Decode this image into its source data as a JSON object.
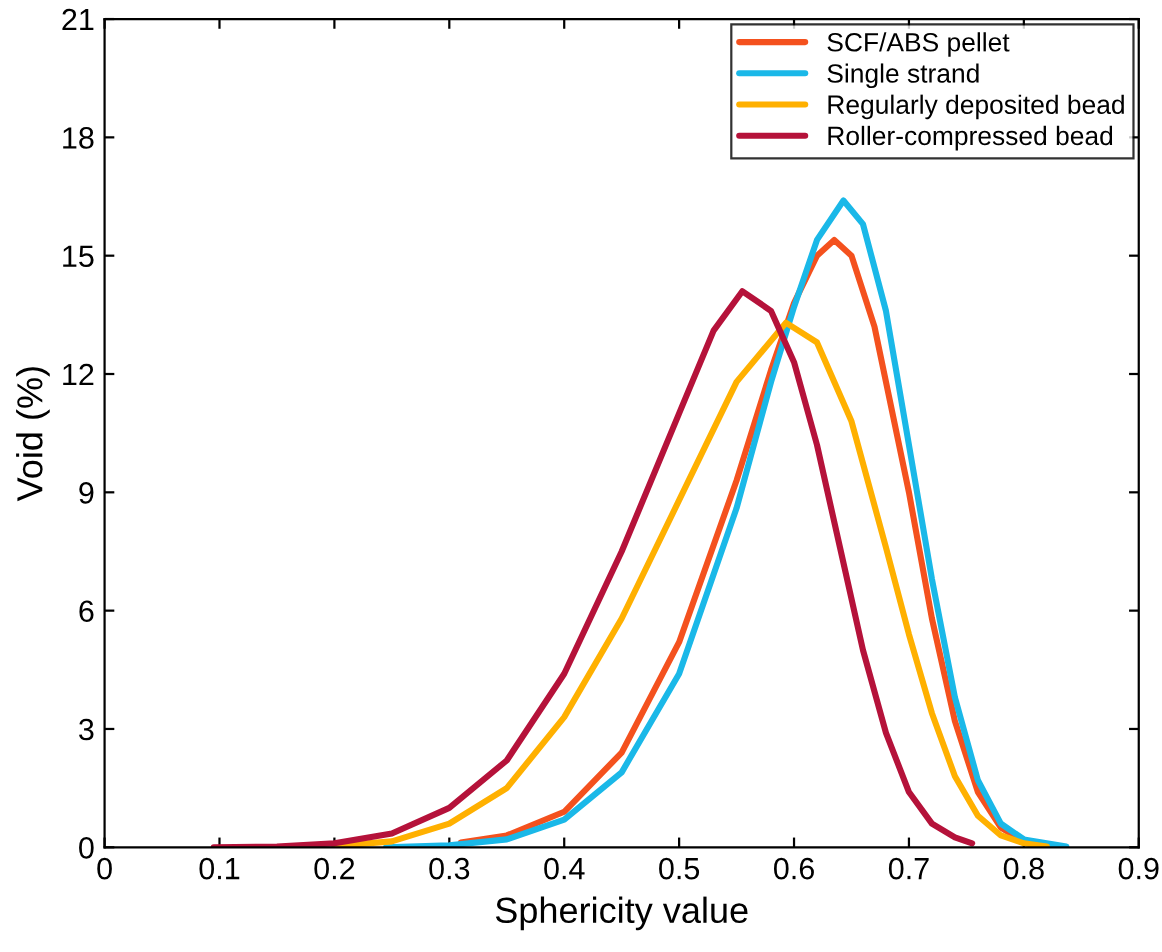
{
  "chart_data": {
    "type": "line",
    "xlabel": "Sphericity value",
    "ylabel": "Void (%)",
    "xlim": [
      0,
      0.9
    ],
    "xticks": [
      0,
      0.1,
      0.2,
      0.3,
      0.4,
      0.5,
      0.6,
      0.7,
      0.8,
      0.9
    ],
    "ylim": [
      0,
      21
    ],
    "yticks": [
      0,
      3,
      6,
      9,
      12,
      15,
      18,
      21
    ],
    "grid": false,
    "legend": "top right",
    "marker": "none",
    "line_style": "solid",
    "series": [
      {
        "name": "SCF/ABS pellet",
        "color": "#f4511e",
        "x": [
          0.31,
          0.35,
          0.4,
          0.45,
          0.5,
          0.55,
          0.58,
          0.6,
          0.62,
          0.635,
          0.65,
          0.67,
          0.7,
          0.72,
          0.74,
          0.76,
          0.78,
          0.8,
          0.82
        ],
        "values": [
          0.12,
          0.3,
          0.9,
          2.4,
          5.2,
          9.3,
          12.1,
          13.8,
          15.0,
          15.4,
          15.0,
          13.2,
          9.0,
          5.8,
          3.2,
          1.4,
          0.5,
          0.15,
          0.03
        ]
      },
      {
        "name": "Single strand",
        "color": "#1ab8e8",
        "x": [
          0.245,
          0.3,
          0.35,
          0.4,
          0.45,
          0.5,
          0.55,
          0.58,
          0.6,
          0.62,
          0.643,
          0.66,
          0.68,
          0.7,
          0.72,
          0.74,
          0.76,
          0.78,
          0.8,
          0.837
        ],
        "values": [
          0,
          0.05,
          0.2,
          0.7,
          1.9,
          4.4,
          8.6,
          11.8,
          13.7,
          15.4,
          16.4,
          15.8,
          13.6,
          10.2,
          6.8,
          3.8,
          1.7,
          0.6,
          0.2,
          0.02
        ]
      },
      {
        "name": "Regularly deposited bead",
        "color": "#ffb000",
        "x": [
          0.2,
          0.25,
          0.3,
          0.35,
          0.4,
          0.45,
          0.5,
          0.55,
          0.593,
          0.62,
          0.65,
          0.68,
          0.7,
          0.72,
          0.74,
          0.76,
          0.78,
          0.8,
          0.82
        ],
        "values": [
          0.03,
          0.15,
          0.6,
          1.5,
          3.3,
          5.8,
          8.8,
          11.8,
          13.3,
          12.8,
          10.8,
          7.6,
          5.4,
          3.4,
          1.8,
          0.8,
          0.3,
          0.1,
          0.02
        ]
      },
      {
        "name": "Roller-compressed bead",
        "color": "#b5123a",
        "x": [
          0.095,
          0.15,
          0.2,
          0.25,
          0.3,
          0.35,
          0.4,
          0.45,
          0.5,
          0.53,
          0.555,
          0.58,
          0.6,
          0.62,
          0.64,
          0.66,
          0.68,
          0.7,
          0.72,
          0.74,
          0.755
        ],
        "values": [
          0,
          0.02,
          0.1,
          0.35,
          1.0,
          2.2,
          4.4,
          7.5,
          11.0,
          13.1,
          14.1,
          13.6,
          12.3,
          10.2,
          7.6,
          5.0,
          2.9,
          1.4,
          0.6,
          0.25,
          0.1
        ]
      }
    ]
  }
}
